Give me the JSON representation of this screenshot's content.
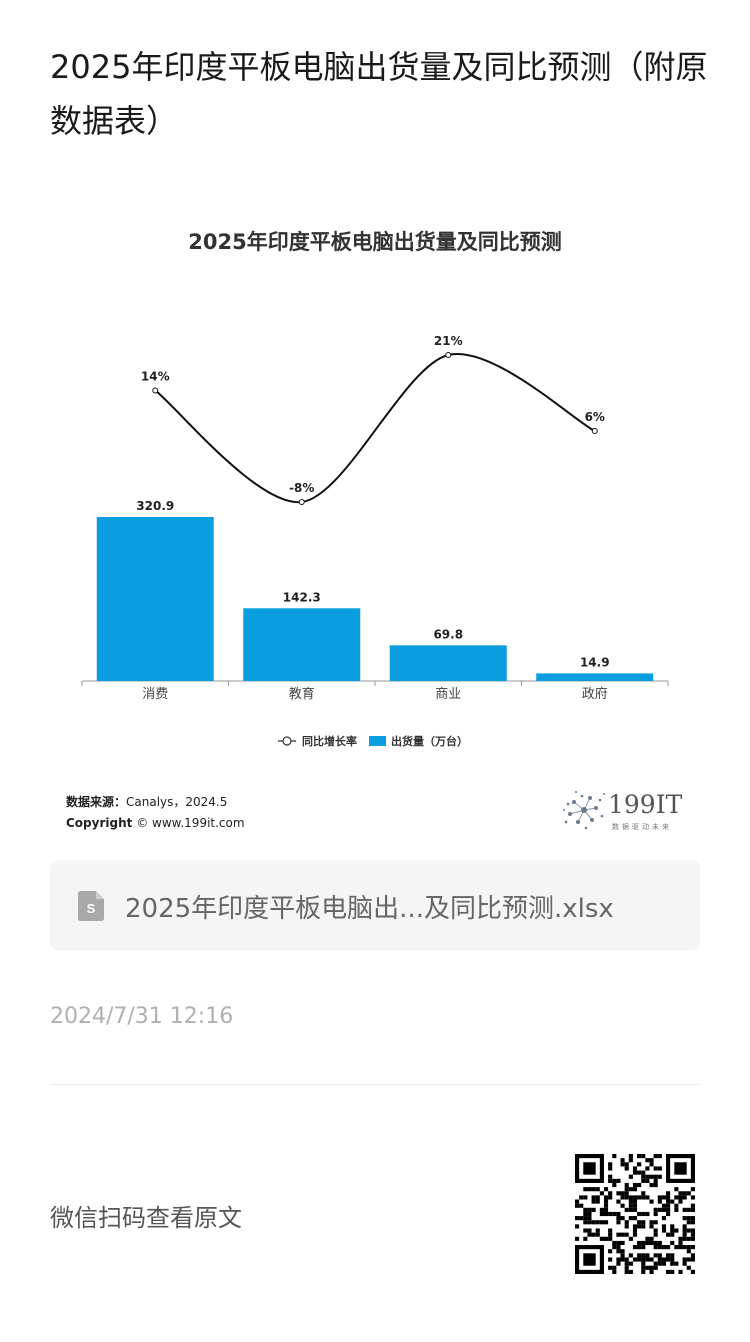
{
  "article": {
    "title": "2025年印度平板电脑出货量及同比预测（附原数据表）",
    "timestamp": "2024/7/31 12:16",
    "qr_caption": "微信扫码查看原文"
  },
  "attachment": {
    "file_name": "2025年印度平板电脑出...及同比预测.xlsx",
    "icon": "spreadsheet-file-icon"
  },
  "chart_card": {
    "source_label": "数据来源：",
    "source_value": "Canalys，2024.5",
    "copyright_label": "Copyright",
    "copyright_value": "© www.199it.com",
    "logo_text": "199IT",
    "logo_sub": "数据驱动未来"
  },
  "colors": {
    "bar": "#0a9ee0",
    "line": "#111111",
    "axis": "#999999"
  },
  "chart_data": {
    "type": "bar",
    "title": "2025年印度平板电脑出货量及同比预测",
    "categories": [
      "消费",
      "教育",
      "商业",
      "政府"
    ],
    "series": [
      {
        "name": "出货量（万台）",
        "type": "bar",
        "values": [
          320.9,
          142.3,
          69.8,
          14.9
        ],
        "labels": [
          "320.9",
          "142.3",
          "69.8",
          "14.9"
        ]
      },
      {
        "name": "同比增长率",
        "type": "line",
        "values": [
          14,
          -8,
          21,
          6
        ],
        "labels": [
          "14%",
          "-8%",
          "21%",
          "6%"
        ]
      }
    ],
    "legend": {
      "placement": "bottom",
      "line_label": "同比增长率",
      "bar_label": "出货量（万台）"
    },
    "grid": false
  }
}
